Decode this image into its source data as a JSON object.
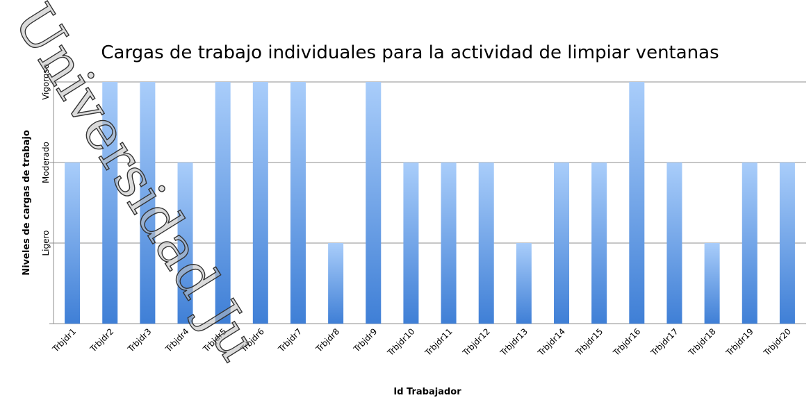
{
  "chart_data": {
    "type": "bar",
    "title": "Cargas de trabajo individuales para la actividad de limpiar ventanas",
    "x_label": "Id Trabajador",
    "y_label": "Niveles de cargas de trabajo",
    "watermark": "Universidad Ju",
    "categories": [
      "Trbjdr1",
      "Trbjdr2",
      "Trbjdr3",
      "Trbjdr4",
      "Trbjdr5",
      "Trbjdr6",
      "Trbjdr7",
      "Trbjdr8",
      "Trbjdr9",
      "Trbjdr10",
      "Trbjdr11",
      "Trbjdr12",
      "Trbjdr13",
      "Trbjdr14",
      "Trbjdr15",
      "Trbjdr16",
      "Trbjdr17",
      "Trbjdr18",
      "Trbjdr19",
      "Trbjdr20"
    ],
    "values": [
      2,
      3,
      3,
      2,
      3,
      3,
      3,
      1,
      3,
      2,
      2,
      2,
      1,
      2,
      2,
      3,
      2,
      1,
      2,
      2
    ],
    "color": "#3f7fd6",
    "ylim": [
      0,
      3
    ],
    "yticks": [
      {
        "value": 1,
        "label": "Ligero"
      },
      {
        "value": 2,
        "label": "Moderado"
      },
      {
        "value": 3,
        "label": "Vigoroso"
      }
    ],
    "grid": true
  }
}
